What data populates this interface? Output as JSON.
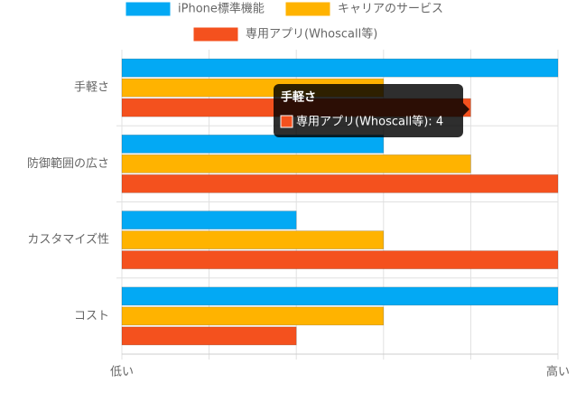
{
  "chart_data": {
    "type": "hbar",
    "categories": [
      "手軽さ",
      "防御範囲の広さ",
      "カスタマイズ性",
      "コスト"
    ],
    "series": [
      {
        "name": "iPhone標準機能",
        "color": "#03a9f4",
        "values": [
          5,
          3,
          2,
          5
        ]
      },
      {
        "name": "キャリアのサービス",
        "color": "#ffb300",
        "values": [
          3,
          4,
          3,
          3
        ]
      },
      {
        "name": "専用アプリ(Whoscall等)",
        "color": "#f4511e",
        "values": [
          4,
          5,
          5,
          2
        ]
      }
    ],
    "xlim": [
      0,
      5
    ],
    "xticks": [
      {
        "value": 0,
        "label": "低い"
      },
      {
        "value": 1,
        "label": null
      },
      {
        "value": 2,
        "label": null
      },
      {
        "value": 3,
        "label": null
      },
      {
        "value": 4,
        "label": null
      },
      {
        "value": 5,
        "label": "高い"
      }
    ],
    "grid": true,
    "tooltip": {
      "title": "手軽さ",
      "label": "専用アプリ(Whoscall等): 4"
    }
  }
}
